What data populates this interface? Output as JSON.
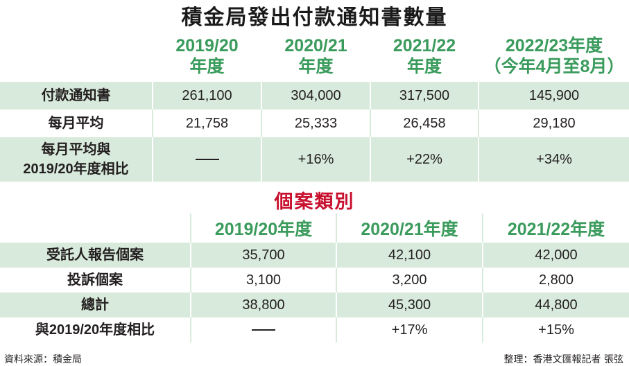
{
  "title": "積金局發出付款通知書數量",
  "section2_title": "個案類別",
  "chart_data": [
    {
      "type": "table",
      "title": "積金局發出付款通知書數量",
      "columns": [
        {
          "line1": "2019/20",
          "line2": "年度"
        },
        {
          "line1": "2020/21",
          "line2": "年度"
        },
        {
          "line1": "2021/22",
          "line2": "年度"
        },
        {
          "line1": "2022/23年度",
          "line2": "（今年4月至8月）"
        }
      ],
      "rows": [
        {
          "label_line1": "付款通知書",
          "label_line2": "",
          "values": [
            "261,100",
            "304,000",
            "317,500",
            "145,900"
          ]
        },
        {
          "label_line1": "每月平均",
          "label_line2": "",
          "values": [
            "21,758",
            "25,333",
            "26,458",
            "29,180"
          ]
        },
        {
          "label_line1": "每月平均與",
          "label_line2": "2019/20年度相比",
          "values": [
            "—",
            "+16%",
            "+22%",
            "+34%"
          ]
        }
      ]
    },
    {
      "type": "table",
      "title": "個案類別",
      "columns": [
        "2019/20年度",
        "2020/21年度",
        "2021/22年度"
      ],
      "rows": [
        {
          "label": "受託人報告個案",
          "values": [
            "35,700",
            "42,100",
            "42,000"
          ]
        },
        {
          "label": "投訴個案",
          "values": [
            "3,100",
            "3,200",
            "2,800"
          ]
        },
        {
          "label": "總計",
          "values": [
            "38,800",
            "45,300",
            "44,800"
          ]
        },
        {
          "label": "與2019/20年度相比",
          "values": [
            "—",
            "+17%",
            "+15%"
          ]
        }
      ]
    }
  ],
  "footer": {
    "source": "資料來源：積金局",
    "credit": "整理：香港文匯報記者 張弦"
  },
  "colors": {
    "header_green": "#3a9b5c",
    "row_tint": "#d8eadb",
    "section_title_red": "#c8102e"
  }
}
